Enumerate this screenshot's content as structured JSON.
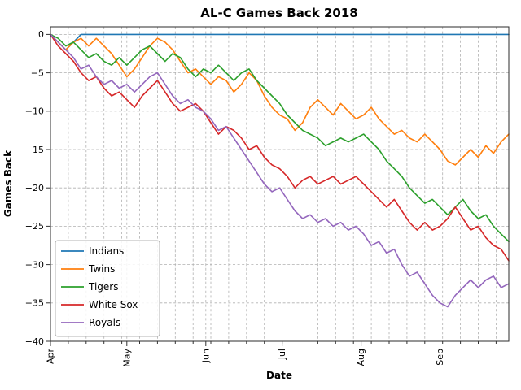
{
  "figure": {
    "title": "AL-C Games Back 2018",
    "background": "#ffffff"
  },
  "chart_data": {
    "type": "line",
    "title": "AL-C Games Back 2018",
    "xlabel": "Date",
    "ylabel": "Games Back",
    "grid": true,
    "legend_position": "lower left",
    "ylim": [
      -40,
      1
    ],
    "xlim_days": [
      0,
      180
    ],
    "x_tick_labels": [
      "Apr",
      "May",
      "Jun",
      "Jul",
      "Aug",
      "Sep"
    ],
    "x_tick_days": [
      0,
      30,
      61,
      91,
      122,
      153
    ],
    "x_minor_tick_step_days": 7,
    "y_ticks": [
      0,
      -5,
      -10,
      -15,
      -20,
      -25,
      -30,
      -35,
      -40
    ],
    "y_tick_labels": [
      "0",
      "−5",
      "−10",
      "−15",
      "−20",
      "−25",
      "−30",
      "−35",
      "−40"
    ],
    "x_days": [
      0,
      3,
      6,
      9,
      12,
      15,
      18,
      21,
      24,
      27,
      30,
      33,
      36,
      39,
      42,
      45,
      48,
      51,
      54,
      57,
      60,
      63,
      66,
      69,
      72,
      75,
      78,
      81,
      84,
      87,
      90,
      93,
      96,
      99,
      102,
      105,
      108,
      111,
      114,
      117,
      120,
      123,
      126,
      129,
      132,
      135,
      138,
      141,
      144,
      147,
      150,
      153,
      156,
      159,
      162,
      165,
      168,
      171,
      174,
      177,
      180
    ],
    "series": [
      {
        "name": "Indians",
        "color": "#1f77b4",
        "values": [
          0,
          -1,
          -2,
          -1,
          0,
          0,
          0,
          0,
          0,
          0,
          0,
          0,
          0,
          0,
          0,
          0,
          0,
          0,
          0,
          0,
          0,
          0,
          0,
          0,
          0,
          0,
          0,
          0,
          0,
          0,
          0,
          0,
          0,
          0,
          0,
          0,
          0,
          0,
          0,
          0,
          0,
          0,
          0,
          0,
          0,
          0,
          0,
          0,
          0,
          0,
          0,
          0,
          0,
          0,
          0,
          0,
          0,
          0,
          0,
          0,
          0
        ]
      },
      {
        "name": "Twins",
        "color": "#ff7f0e",
        "values": [
          0,
          -1,
          -2,
          -1,
          -0.5,
          -1.5,
          -0.5,
          -1.5,
          -2.5,
          -4,
          -5.5,
          -4.5,
          -3,
          -1.5,
          -0.5,
          -1,
          -2,
          -3.5,
          -5,
          -4.5,
          -5.5,
          -6.5,
          -5.5,
          -6,
          -7.5,
          -6.5,
          -5,
          -6,
          -8,
          -9.5,
          -10.5,
          -11,
          -12.5,
          -11.5,
          -9.5,
          -8.5,
          -9.5,
          -10.5,
          -9,
          -10,
          -11,
          -10.5,
          -9.5,
          -11,
          -12,
          -13,
          -12.5,
          -13.5,
          -14,
          -13,
          -14,
          -15,
          -16.5,
          -17,
          -16,
          -15,
          -16,
          -14.5,
          -15.5,
          -14,
          -13
        ]
      },
      {
        "name": "Tigers",
        "color": "#2ca02c",
        "values": [
          0,
          -0.5,
          -1.5,
          -1,
          -2,
          -3,
          -2.5,
          -3.5,
          -4,
          -3,
          -4,
          -3,
          -2,
          -1.5,
          -2.5,
          -3.5,
          -2.5,
          -3,
          -4.5,
          -5.5,
          -4.5,
          -5,
          -4,
          -5,
          -6,
          -5,
          -4.5,
          -6,
          -7,
          -8,
          -9,
          -10.5,
          -11.5,
          -12.5,
          -13,
          -13.5,
          -14.5,
          -14,
          -13.5,
          -14,
          -13.5,
          -13,
          -14,
          -15,
          -16.5,
          -17.5,
          -18.5,
          -20,
          -21,
          -22,
          -21.5,
          -22.5,
          -23.5,
          -22.5,
          -21.5,
          -23,
          -24,
          -23.5,
          -25,
          -26,
          -27
        ]
      },
      {
        "name": "White Sox",
        "color": "#d62728",
        "values": [
          0,
          -1.5,
          -2.5,
          -3.5,
          -5,
          -6,
          -5.5,
          -7,
          -8,
          -7.5,
          -8.5,
          -9.5,
          -8,
          -7,
          -6,
          -7.5,
          -9,
          -10,
          -9.5,
          -9,
          -10,
          -11.5,
          -13,
          -12,
          -12.5,
          -13.5,
          -15,
          -14.5,
          -16,
          -17,
          -17.5,
          -18.5,
          -20,
          -19,
          -18.5,
          -19.5,
          -19,
          -18.5,
          -19.5,
          -19,
          -18.5,
          -19.5,
          -20.5,
          -21.5,
          -22.5,
          -21.5,
          -23,
          -24.5,
          -25.5,
          -24.5,
          -25.5,
          -25,
          -24,
          -22.5,
          -24,
          -25.5,
          -25,
          -26.5,
          -27.5,
          -28,
          -29.5
        ]
      },
      {
        "name": "Royals",
        "color": "#9467bd",
        "values": [
          0,
          -1,
          -2,
          -3,
          -4.5,
          -4,
          -5.5,
          -6.5,
          -6,
          -7,
          -6.5,
          -7.5,
          -6.5,
          -5.5,
          -5,
          -6.5,
          -8,
          -9,
          -8.5,
          -9.5,
          -10,
          -11,
          -12.5,
          -12,
          -13.5,
          -15,
          -16.5,
          -18,
          -19.5,
          -20.5,
          -20,
          -21.5,
          -23,
          -24,
          -23.5,
          -24.5,
          -24,
          -25,
          -24.5,
          -25.5,
          -25,
          -26,
          -27.5,
          -27,
          -28.5,
          -28,
          -30,
          -31.5,
          -31,
          -32.5,
          -34,
          -35,
          -35.5,
          -34,
          -33,
          -32,
          -33,
          -32,
          -31.5,
          -33,
          -32.5
        ]
      }
    ]
  }
}
